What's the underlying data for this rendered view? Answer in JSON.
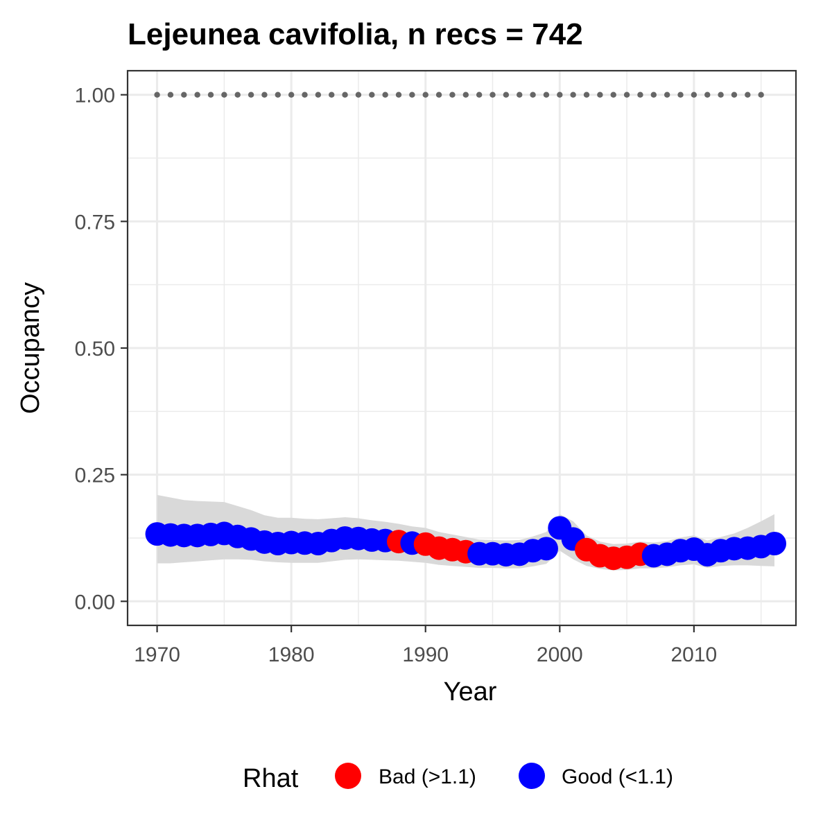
{
  "chart_data": {
    "type": "line",
    "title": "Lejeunea cavifolia, n recs = 742",
    "xlabel": "Year",
    "ylabel": "Occupancy",
    "xlim": [
      1967.8,
      2017.6
    ],
    "ylim": [
      -0.0475,
      1.0475
    ],
    "x_ticks": [
      1970,
      1980,
      1990,
      2000,
      2010
    ],
    "x_tick_labels": [
      "1970",
      "1980",
      "1990",
      "2000",
      "2010"
    ],
    "y_ticks": [
      0,
      0.25,
      0.5,
      0.75,
      1
    ],
    "y_tick_labels": [
      "0.00",
      "0.25",
      "0.50",
      "0.75",
      "1.00"
    ],
    "grid": true,
    "legend": {
      "title": "Rhat",
      "position": "bottom",
      "entries": [
        {
          "label": "Bad (>1.1)",
          "color": "#ff0000"
        },
        {
          "label": "Good (<1.1)",
          "color": "#0000ff"
        }
      ]
    },
    "colors": {
      "bad": "#ff0000",
      "good": "#0000ff",
      "ribbon": "#d9d9d9",
      "reference": "#666666"
    },
    "reference_points": {
      "x": [
        1970,
        1971,
        1972,
        1973,
        1974,
        1975,
        1976,
        1977,
        1978,
        1979,
        1980,
        1981,
        1982,
        1983,
        1984,
        1985,
        1986,
        1987,
        1988,
        1989,
        1990,
        1991,
        1992,
        1993,
        1994,
        1995,
        1996,
        1997,
        1998,
        1999,
        2000,
        2001,
        2002,
        2003,
        2004,
        2005,
        2006,
        2007,
        2008,
        2009,
        2010,
        2011,
        2012,
        2013,
        2014,
        2015
      ],
      "y": 1.0
    },
    "series": [
      {
        "x": [
          1970,
          1971,
          1972,
          1973,
          1974,
          1975,
          1976,
          1977,
          1978,
          1979,
          1980,
          1981,
          1982,
          1983,
          1984,
          1985,
          1986,
          1987,
          1988,
          1989,
          1990,
          1991,
          1992,
          1993,
          1994,
          1995,
          1996,
          1997,
          1998,
          1999,
          2000,
          2001,
          2002,
          2003,
          2004,
          2005,
          2006,
          2007,
          2008,
          2009,
          2010,
          2011,
          2012,
          2013,
          2014,
          2015,
          2016
        ],
        "y": [
          0.133,
          0.131,
          0.13,
          0.13,
          0.132,
          0.134,
          0.128,
          0.123,
          0.117,
          0.114,
          0.116,
          0.115,
          0.114,
          0.12,
          0.125,
          0.124,
          0.121,
          0.12,
          0.118,
          0.115,
          0.113,
          0.105,
          0.102,
          0.098,
          0.094,
          0.094,
          0.092,
          0.093,
          0.1,
          0.104,
          0.145,
          0.123,
          0.102,
          0.09,
          0.085,
          0.087,
          0.093,
          0.09,
          0.093,
          0.1,
          0.103,
          0.092,
          0.1,
          0.104,
          0.105,
          0.108,
          0.114
        ],
        "rhat_status": [
          "good",
          "good",
          "good",
          "good",
          "good",
          "good",
          "good",
          "good",
          "good",
          "good",
          "good",
          "good",
          "good",
          "good",
          "good",
          "good",
          "good",
          "good",
          "bad",
          "good",
          "bad",
          "bad",
          "bad",
          "bad",
          "good",
          "good",
          "good",
          "good",
          "good",
          "good",
          "good",
          "good",
          "bad",
          "bad",
          "bad",
          "bad",
          "bad",
          "good",
          "good",
          "good",
          "good",
          "good",
          "good",
          "good",
          "good",
          "good",
          "good"
        ],
        "lower": [
          0.075,
          0.075,
          0.077,
          0.079,
          0.081,
          0.083,
          0.083,
          0.082,
          0.079,
          0.077,
          0.076,
          0.076,
          0.076,
          0.079,
          0.082,
          0.083,
          0.082,
          0.081,
          0.08,
          0.078,
          0.076,
          0.072,
          0.07,
          0.068,
          0.066,
          0.066,
          0.065,
          0.065,
          0.069,
          0.074,
          0.1,
          0.083,
          0.07,
          0.064,
          0.061,
          0.062,
          0.065,
          0.065,
          0.067,
          0.071,
          0.073,
          0.066,
          0.07,
          0.071,
          0.071,
          0.07,
          0.069
        ],
        "upper": [
          0.21,
          0.205,
          0.2,
          0.198,
          0.197,
          0.196,
          0.188,
          0.18,
          0.17,
          0.165,
          0.165,
          0.163,
          0.162,
          0.164,
          0.166,
          0.164,
          0.16,
          0.157,
          0.153,
          0.148,
          0.145,
          0.137,
          0.132,
          0.127,
          0.122,
          0.121,
          0.12,
          0.121,
          0.128,
          0.137,
          0.172,
          0.158,
          0.13,
          0.118,
          0.113,
          0.114,
          0.118,
          0.116,
          0.119,
          0.126,
          0.13,
          0.12,
          0.127,
          0.134,
          0.145,
          0.158,
          0.172
        ]
      }
    ]
  }
}
